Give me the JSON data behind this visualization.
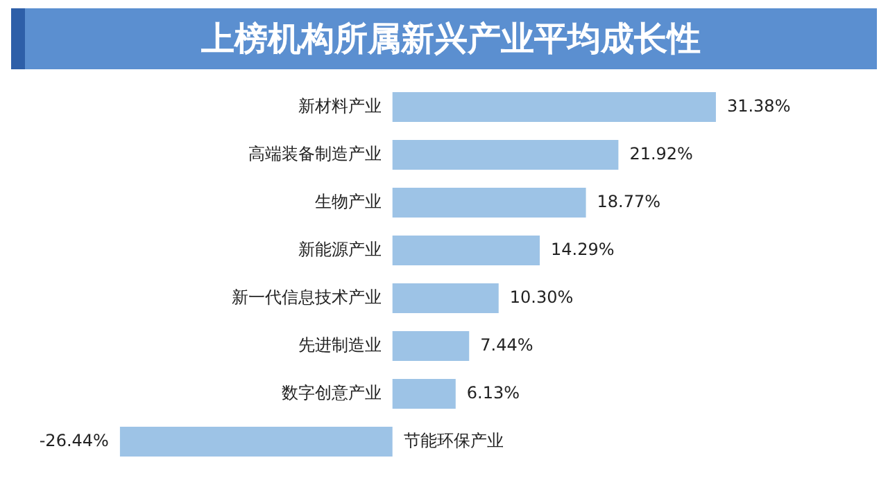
{
  "chart_data": {
    "type": "bar",
    "orientation": "horizontal",
    "title": "上榜机构所属新兴产业平均成长性",
    "categories": [
      "新材料产业",
      "高端装备制造产业",
      "生物产业",
      "新能源产业",
      "新一代信息技术产业",
      "先进制造业",
      "数字创意产业",
      "节能环保产业"
    ],
    "values": [
      31.38,
      21.92,
      18.77,
      14.29,
      10.3,
      7.44,
      6.13,
      -26.44
    ],
    "value_labels": [
      "31.38%",
      "21.92%",
      "18.77%",
      "14.29%",
      "10.30%",
      "7.44%",
      "6.13%",
      "-26.44%"
    ],
    "color": "#9dc3e6"
  }
}
